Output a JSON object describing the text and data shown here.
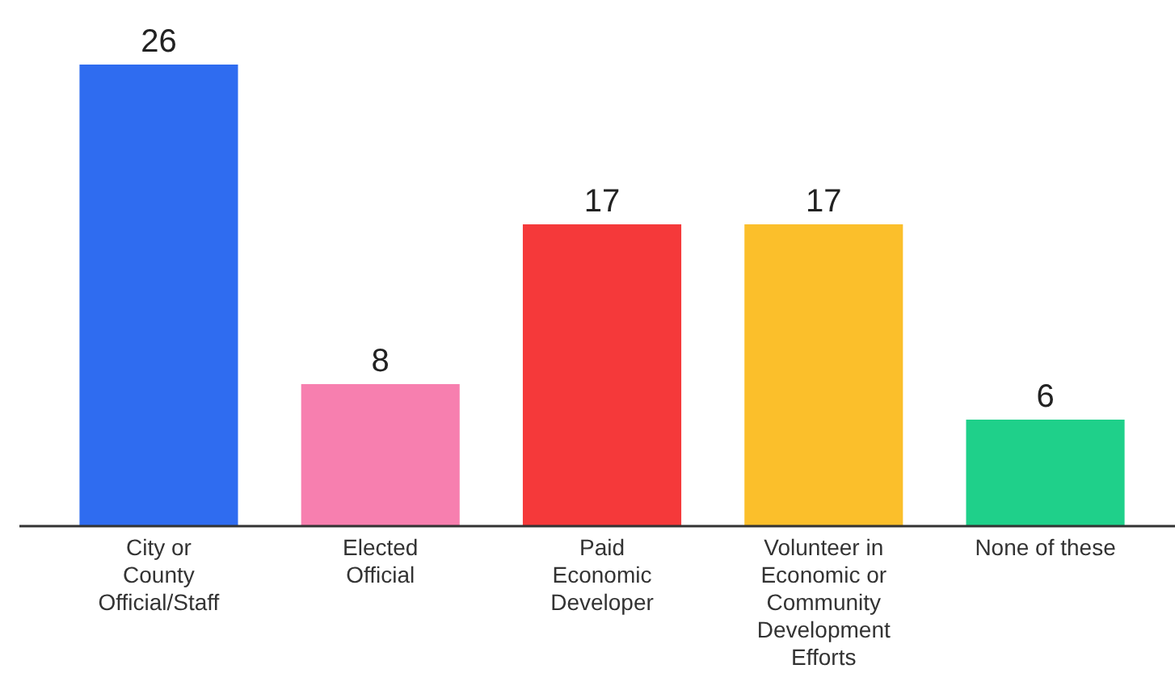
{
  "chart_data": {
    "type": "bar",
    "categories": [
      "City or County Official/Staff",
      "Elected Official",
      "Paid Economic Developer",
      "Volunteer in Economic or Community Development Efforts",
      "None of these"
    ],
    "values": [
      26,
      8,
      17,
      17,
      6
    ],
    "colors": [
      "#2f6cf0",
      "#f77faf",
      "#f5393a",
      "#fbbf2b",
      "#1fd08a"
    ],
    "data_labels": true
  }
}
